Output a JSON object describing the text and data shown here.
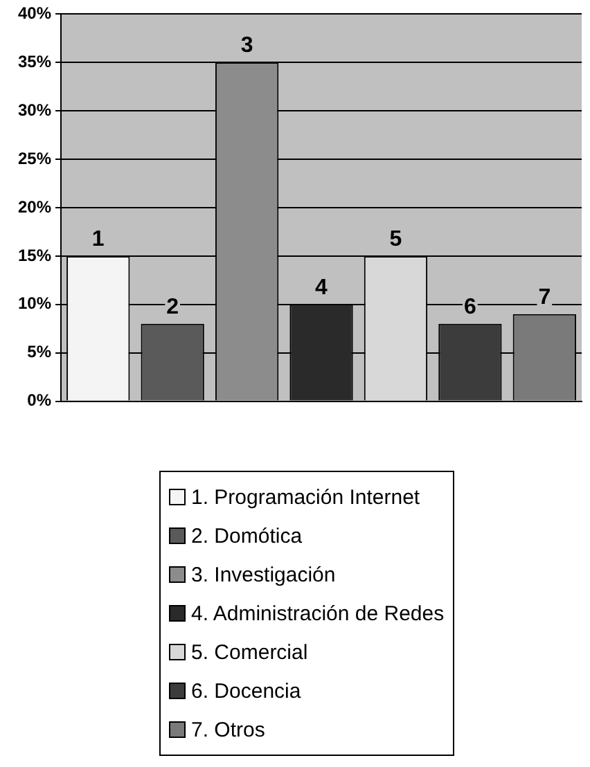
{
  "chart_data": {
    "type": "bar",
    "categories": [
      null,
      null,
      null,
      null,
      null,
      null,
      null
    ],
    "series": [
      {
        "name": "1. Programación Internet",
        "color": "#f4f4f4",
        "values": [
          15,
          null,
          null,
          null,
          null,
          null,
          null
        ]
      },
      {
        "name": "2. Domótica",
        "color": "#5a5a5a",
        "values": [
          null,
          8,
          null,
          null,
          null,
          null,
          null
        ]
      },
      {
        "name": "3. Investigación",
        "color": "#8c8c8c",
        "values": [
          null,
          null,
          35,
          null,
          null,
          null,
          null
        ]
      },
      {
        "name": "4. Administración de Redes",
        "color": "#2a2a2a",
        "values": [
          null,
          null,
          null,
          10,
          null,
          null,
          null
        ]
      },
      {
        "name": "5. Comercial",
        "color": "#d8d8d8",
        "values": [
          null,
          null,
          null,
          null,
          15,
          null,
          null
        ]
      },
      {
        "name": "6. Docencia",
        "color": "#3c3c3c",
        "values": [
          null,
          null,
          null,
          null,
          null,
          8,
          null
        ]
      },
      {
        "name": "7. Otros",
        "color": "#7a7a7a",
        "values": [
          null,
          null,
          null,
          null,
          null,
          null,
          9
        ]
      }
    ],
    "annotations": [
      "1",
      "2",
      "3",
      "4",
      "5",
      "6",
      "7"
    ],
    "ylim": [
      0,
      40
    ],
    "yticks": [
      {
        "value": 0,
        "label": "0%"
      },
      {
        "value": 5,
        "label": "5%"
      },
      {
        "value": 10,
        "label": "10%"
      },
      {
        "value": 15,
        "label": "15%"
      },
      {
        "value": 20,
        "label": "20%"
      },
      {
        "value": 25,
        "label": "25%"
      },
      {
        "value": 30,
        "label": "30%"
      },
      {
        "value": 35,
        "label": "35%"
      },
      {
        "value": 40,
        "label": "40%"
      }
    ],
    "grid": "y",
    "legend": "bottom",
    "tick_labels": "y"
  }
}
